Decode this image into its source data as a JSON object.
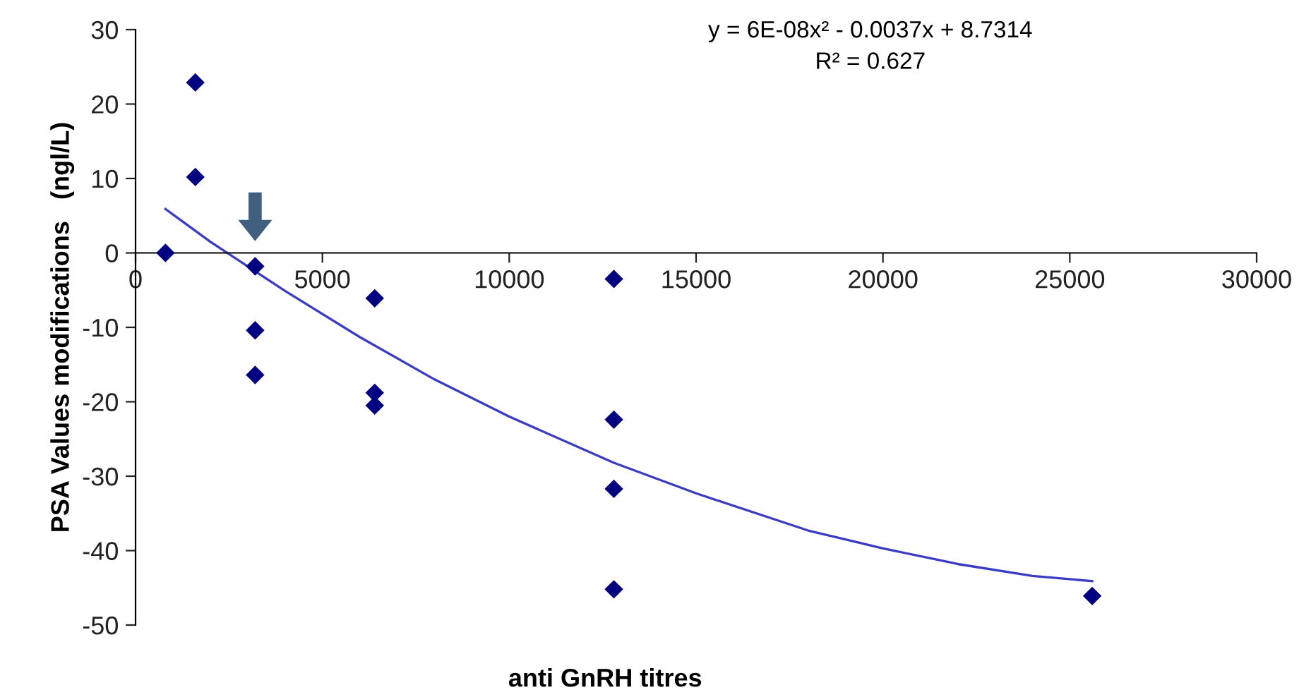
{
  "chart_data": {
    "type": "scatter",
    "xlabel": "anti GnRH titres",
    "ylabel": "PSA Values modifications   (ngl/L)",
    "annotations": [
      "y = 6E-08x² - 0.0037x + 8.7314",
      "R² = 0.627"
    ],
    "series": [
      {
        "color": "#000080",
        "marker": "diamond",
        "x": [
          800,
          1600,
          1600,
          3200,
          3200,
          3200,
          6400,
          6400,
          6400,
          12800,
          12800,
          12800,
          12800,
          25600
        ],
        "values": [
          0,
          22.9,
          10.2,
          -1.8,
          -10.4,
          -16.4,
          -6.1,
          -18.8,
          -20.5,
          -3.5,
          -22.4,
          -31.7,
          -45.2,
          -46.1
        ]
      },
      {
        "type": "line",
        "color": "#3b3bc4",
        "marker": "none",
        "line_style": "solid",
        "x": [
          800,
          2000,
          4000,
          6000,
          8000,
          10000,
          12800,
          15000,
          18000,
          20000,
          22000,
          24000,
          25600
        ],
        "values": [
          5.9,
          1.5,
          -5.1,
          -11.3,
          -17,
          -22,
          -28.2,
          -32.3,
          -37.3,
          -39.7,
          -41.8,
          -43.4,
          -44.1
        ]
      }
    ],
    "xlim": [
      0,
      30000
    ],
    "xticks": [
      0,
      5000,
      10000,
      15000,
      20000,
      25000,
      30000
    ],
    "ylim": [
      -50,
      30
    ],
    "yticks": [
      -50,
      -40,
      -30,
      -20,
      -10,
      0,
      10,
      20,
      30
    ],
    "grid": false
  }
}
